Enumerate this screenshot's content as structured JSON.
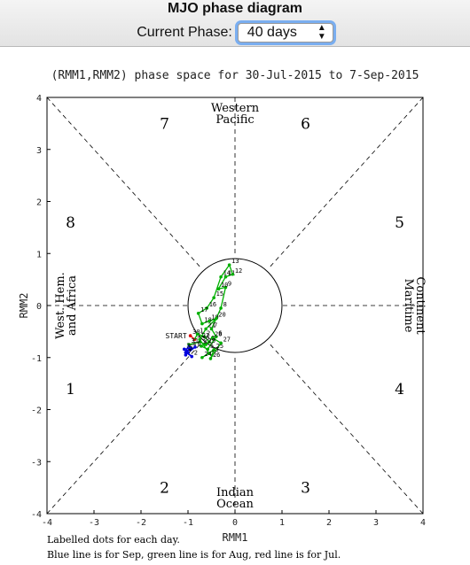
{
  "page": {
    "title": "MJO phase diagram",
    "phase_label": "Current Phase:",
    "phase_value": "40 days"
  },
  "icons": {
    "select": "up-down-chevron-icon"
  },
  "chart_data": {
    "type": "line",
    "title": "(RMM1,RMM2) phase space for 30-Jul-2015 to  7-Sep-2015",
    "xlabel": "RMM1",
    "ylabel": "RMM2",
    "xlim": [
      -4,
      4
    ],
    "ylim": [
      -4,
      4
    ],
    "xticks": [
      "-4",
      "-3",
      "-2",
      "-1",
      "0",
      "1",
      "2",
      "3",
      "4"
    ],
    "yticks": [
      "-4",
      "-3",
      "-2",
      "-1",
      "0",
      "1",
      "2",
      "3",
      "4"
    ],
    "phases": [
      "1",
      "2",
      "3",
      "4",
      "5",
      "6",
      "7",
      "8"
    ],
    "regions": {
      "top": [
        "Western",
        "Pacific"
      ],
      "bottom": [
        "Indian",
        "Ocean"
      ],
      "left": [
        "West. Hem.",
        "and Africa"
      ],
      "right": [
        "Maritime",
        "Continent"
      ]
    },
    "footnotes": [
      "Labelled dots for each day.",
      "Blue line is for Sep, green line is for Aug, red line is for Jul."
    ],
    "start_label": "START",
    "colors": {
      "jul": "#e00000",
      "aug": "#00b000",
      "sep": "#0000dd",
      "frame": "#000000"
    },
    "series": [
      {
        "name": "Jul",
        "color": "#e00000",
        "points": [
          [
            -0.95,
            -0.58
          ],
          [
            -0.86,
            -0.65
          ]
        ],
        "labels": [
          "30",
          "31"
        ]
      },
      {
        "name": "Aug",
        "color": "#00b000",
        "points": [
          [
            -0.86,
            -0.65
          ],
          [
            -0.8,
            -0.55
          ],
          [
            -0.65,
            -0.6
          ],
          [
            -0.55,
            -0.7
          ],
          [
            -0.72,
            -0.78
          ],
          [
            -0.58,
            -0.84
          ],
          [
            -0.4,
            -0.6
          ],
          [
            -0.5,
            -0.45
          ],
          [
            -0.3,
            -0.05
          ],
          [
            -0.2,
            0.35
          ],
          [
            -0.35,
            0.32
          ],
          [
            -0.2,
            0.55
          ],
          [
            -0.05,
            0.6
          ],
          [
            -0.12,
            0.78
          ],
          [
            -0.3,
            0.55
          ],
          [
            -0.45,
            0.15
          ],
          [
            -0.6,
            -0.05
          ],
          [
            -0.78,
            -0.15
          ],
          [
            -0.7,
            -0.35
          ],
          [
            -0.55,
            -0.3
          ],
          [
            -0.4,
            -0.25
          ],
          [
            -0.62,
            -0.45
          ],
          [
            -0.75,
            -0.65
          ],
          [
            -0.55,
            -0.92
          ],
          [
            -0.7,
            -1.0
          ],
          [
            -0.45,
            -0.85
          ],
          [
            -0.52,
            -1.02
          ],
          [
            -0.3,
            -0.72
          ],
          [
            -0.48,
            -0.62
          ],
          [
            -0.62,
            -0.75
          ],
          [
            -0.75,
            -0.7
          ],
          [
            -0.98,
            -0.75
          ]
        ],
        "labels": [
          "1",
          "2",
          "3",
          "4",
          "5",
          "6",
          "7",
          "8",
          "9",
          "10",
          "11",
          "12",
          "13",
          "14",
          "15",
          "16",
          "17",
          "18",
          "19",
          "20",
          "21",
          "22",
          "23",
          "24",
          "25",
          "26",
          "27",
          "28",
          "29",
          "30",
          "31"
        ]
      },
      {
        "name": "Sep",
        "color": "#0000dd",
        "points": [
          [
            -0.98,
            -0.75
          ],
          [
            -1.05,
            -0.9
          ],
          [
            -0.92,
            -0.98
          ],
          [
            -1.08,
            -0.84
          ],
          [
            -0.95,
            -0.82
          ],
          [
            -1.02,
            -0.88
          ],
          [
            -0.85,
            -0.8
          ],
          [
            -1.05,
            -0.95
          ]
        ],
        "labels": [
          "1",
          "2",
          "3",
          "4",
          "5",
          "6",
          "7"
        ]
      }
    ]
  }
}
